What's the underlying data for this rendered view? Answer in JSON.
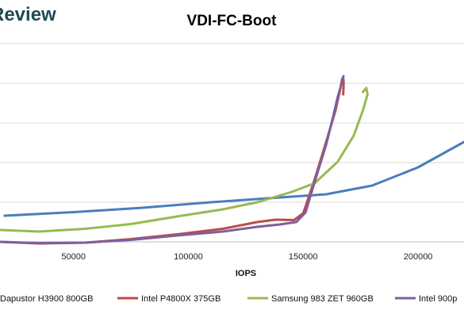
{
  "logo": {
    "text": "Review",
    "color": "#1f4a56"
  },
  "chart_data": {
    "type": "line",
    "title": "VDI-FC-Boot",
    "xlabel": "IOPS",
    "ylabel": "",
    "x_ticks": [
      50000,
      100000,
      150000,
      200000
    ],
    "x_tick_labels": [
      "50000",
      "100000",
      "150000",
      "200000"
    ],
    "xlim": [
      18000,
      220000
    ],
    "ylim": [
      0,
      5
    ],
    "grid": true,
    "legend_position": "bottom",
    "series": [
      {
        "name": "Dapustor H3900 800GB",
        "color": "#4a7ebb",
        "points": [
          [
            20000,
            0.66
          ],
          [
            50000,
            0.75
          ],
          [
            80000,
            0.86
          ],
          [
            110000,
            1.0
          ],
          [
            140000,
            1.12
          ],
          [
            160000,
            1.2
          ],
          [
            180000,
            1.42
          ],
          [
            200000,
            1.88
          ],
          [
            220000,
            2.52
          ]
        ]
      },
      {
        "name": "Intel P4800X 375GB",
        "color": "#be4b48",
        "points": [
          [
            18000,
            0.0
          ],
          [
            35000,
            -0.04
          ],
          [
            55000,
            -0.02
          ],
          [
            75000,
            0.07
          ],
          [
            95000,
            0.19
          ],
          [
            115000,
            0.33
          ],
          [
            130000,
            0.5
          ],
          [
            138000,
            0.56
          ],
          [
            146000,
            0.55
          ],
          [
            150000,
            0.72
          ],
          [
            155000,
            1.58
          ],
          [
            160000,
            2.52
          ],
          [
            164000,
            3.3
          ],
          [
            166000,
            3.82
          ],
          [
            167000,
            4.12
          ],
          [
            167500,
            4.1
          ],
          [
            167600,
            3.95
          ],
          [
            167400,
            3.72
          ]
        ]
      },
      {
        "name": "Samsung 983 ZET 960GB",
        "color": "#98b954",
        "points": [
          [
            18000,
            0.3
          ],
          [
            35000,
            0.26
          ],
          [
            55000,
            0.33
          ],
          [
            75000,
            0.45
          ],
          [
            95000,
            0.64
          ],
          [
            115000,
            0.82
          ],
          [
            130000,
            1.0
          ],
          [
            145000,
            1.26
          ],
          [
            155000,
            1.48
          ],
          [
            165000,
            2.02
          ],
          [
            172000,
            2.68
          ],
          [
            176000,
            3.32
          ],
          [
            178000,
            3.72
          ],
          [
            177500,
            3.88
          ],
          [
            176000,
            3.78
          ]
        ]
      },
      {
        "name": "Intel 900p",
        "color": "#7d5fa0",
        "points": [
          [
            18000,
            0.0
          ],
          [
            35000,
            -0.03
          ],
          [
            55000,
            -0.02
          ],
          [
            75000,
            0.05
          ],
          [
            95000,
            0.16
          ],
          [
            115000,
            0.26
          ],
          [
            130000,
            0.38
          ],
          [
            140000,
            0.44
          ],
          [
            147000,
            0.5
          ],
          [
            151000,
            0.74
          ],
          [
            155000,
            1.52
          ],
          [
            160000,
            2.45
          ],
          [
            163000,
            3.15
          ],
          [
            165000,
            3.65
          ],
          [
            166500,
            3.95
          ],
          [
            167200,
            4.05
          ],
          [
            167500,
            4.18
          ],
          [
            167300,
            4.12
          ]
        ]
      }
    ]
  }
}
